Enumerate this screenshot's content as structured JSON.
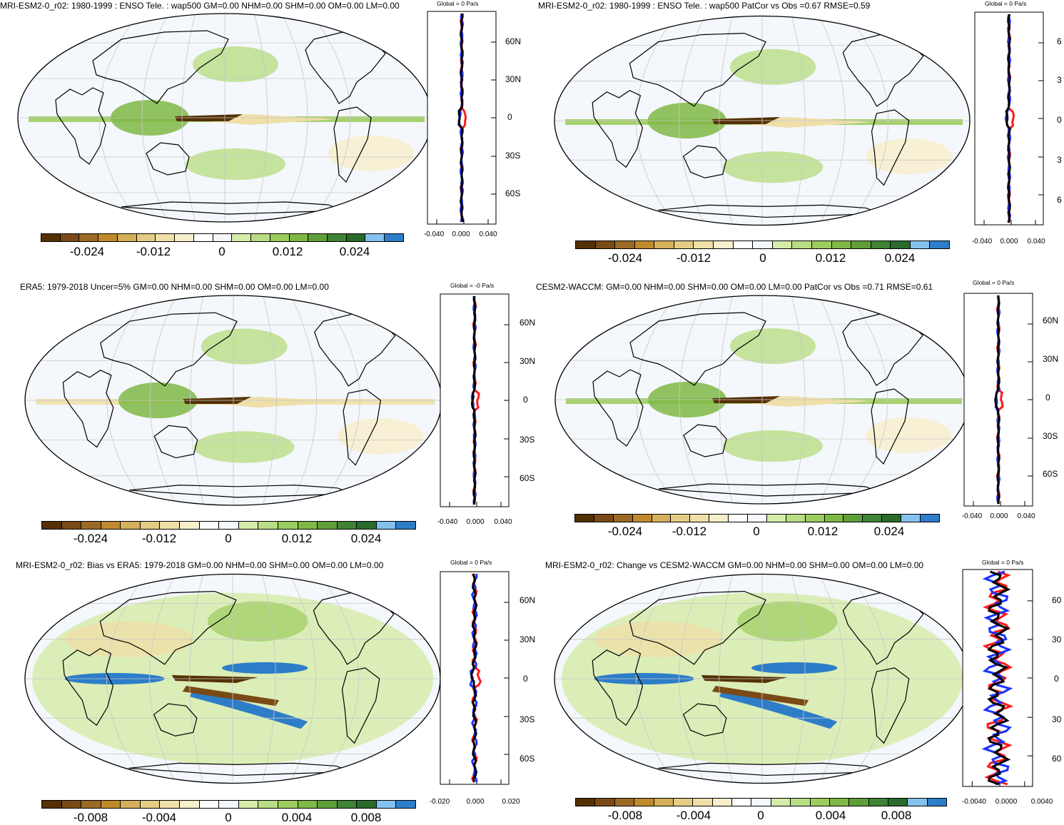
{
  "colorbar_colors": [
    "#543005",
    "#7a4a16",
    "#9b6a24",
    "#c08a2c",
    "#d4b05a",
    "#e3cc85",
    "#efdfa8",
    "#f7eecb",
    "#ffffff",
    "#f4f7fb",
    "#d6ecab",
    "#b9dd84",
    "#9dcc5e",
    "#7fb945",
    "#5f9f3a",
    "#3f8334",
    "#2a6a2a",
    "#85c1ee",
    "#2d7dc9"
  ],
  "panels": [
    {
      "id": "mri-1980",
      "title": "MRI-ESM2-0_r02: 1980-1999 : ENSO Tele. : wap500 GM=0.00 NHM=0.00 SHM=0.00 OM=0.00 LM=0.00",
      "global_label": "Global = 0 Pa/s",
      "lat_labels": [
        "60N",
        "30N",
        "0",
        "30S",
        "60S"
      ],
      "x_labels": [
        "-0.040",
        "0.000",
        "0.040"
      ],
      "cbar_labels": [
        "-0.024",
        "-0.012",
        "0",
        "0.012",
        "0.024"
      ],
      "style": "std"
    },
    {
      "id": "mri-1980-patcor",
      "title": "MRI-ESM2-0_r02: 1980-1999 : ENSO Tele. : wap500 PatCor vs Obs =0.67 RMSE=0.59",
      "global_label": "Global = 0 Pa/s",
      "lat_labels": [
        "6",
        "3",
        "0",
        "3",
        "6"
      ],
      "x_labels": [
        "-0.040",
        "0.000",
        "0.040"
      ],
      "cbar_labels": [
        "-0.024",
        "-0.012",
        "0",
        "0.012",
        "0.024"
      ],
      "style": "std"
    },
    {
      "id": "era5",
      "title": "ERA5: 1979-2018 Uncer=5% GM=0.00 NHM=0.00 SHM=0.00 OM=0.00 LM=0.00",
      "global_label": "Global = -0 Pa/s",
      "lat_labels": [
        "60N",
        "30N",
        "0",
        "30S",
        "60S"
      ],
      "x_labels": [
        "-0.040",
        "0.000",
        "0.040"
      ],
      "cbar_labels": [
        "-0.024",
        "-0.012",
        "0",
        "0.012",
        "0.024"
      ],
      "style": "obs"
    },
    {
      "id": "cesm2-waccm",
      "title": "CESM2-WACCM: GM=0.00 NHM=0.00 SHM=0.00 OM=0.00 LM=0.00 PatCor vs Obs =0.71 RMSE=0.61",
      "global_label": "Global = 0 Pa/s",
      "lat_labels": [
        "60N",
        "30N",
        "0",
        "30S",
        "60S"
      ],
      "x_labels": [
        "-0.040",
        "0.000",
        "0.040"
      ],
      "cbar_labels": [
        "-0.024",
        "-0.012",
        "0",
        "0.012",
        "0.024"
      ],
      "style": "std"
    },
    {
      "id": "mri-bias",
      "title": "MRI-ESM2-0_r02: Bias vs ERA5: 1979-2018 GM=0.00 NHM=0.00 SHM=0.00 OM=0.00 LM=0.00",
      "global_label": "Global = 0 Pa/s",
      "lat_labels": [
        "60N",
        "30N",
        "0",
        "30S",
        "60S"
      ],
      "x_labels": [
        "-0.020",
        "0.000",
        "0.020"
      ],
      "cbar_labels": [
        "-0.008",
        "-0.004",
        "0",
        "0.004",
        "0.008"
      ],
      "style": "bias"
    },
    {
      "id": "mri-change",
      "title": "MRI-ESM2-0_r02: Change vs CESM2-WACCM GM=0.00 NHM=0.00 SHM=0.00 OM=0.00 LM=0.00",
      "global_label": "Global = 0 Pa/s",
      "lat_labels": [
        "60",
        "30",
        "0",
        "30",
        "60"
      ],
      "x_labels": [
        "-0.0040",
        "0.0000",
        "0.0040"
      ],
      "cbar_labels": [
        "-0.008",
        "-0.004",
        "0",
        "0.004",
        "0.008"
      ],
      "style": "bias"
    }
  ]
}
